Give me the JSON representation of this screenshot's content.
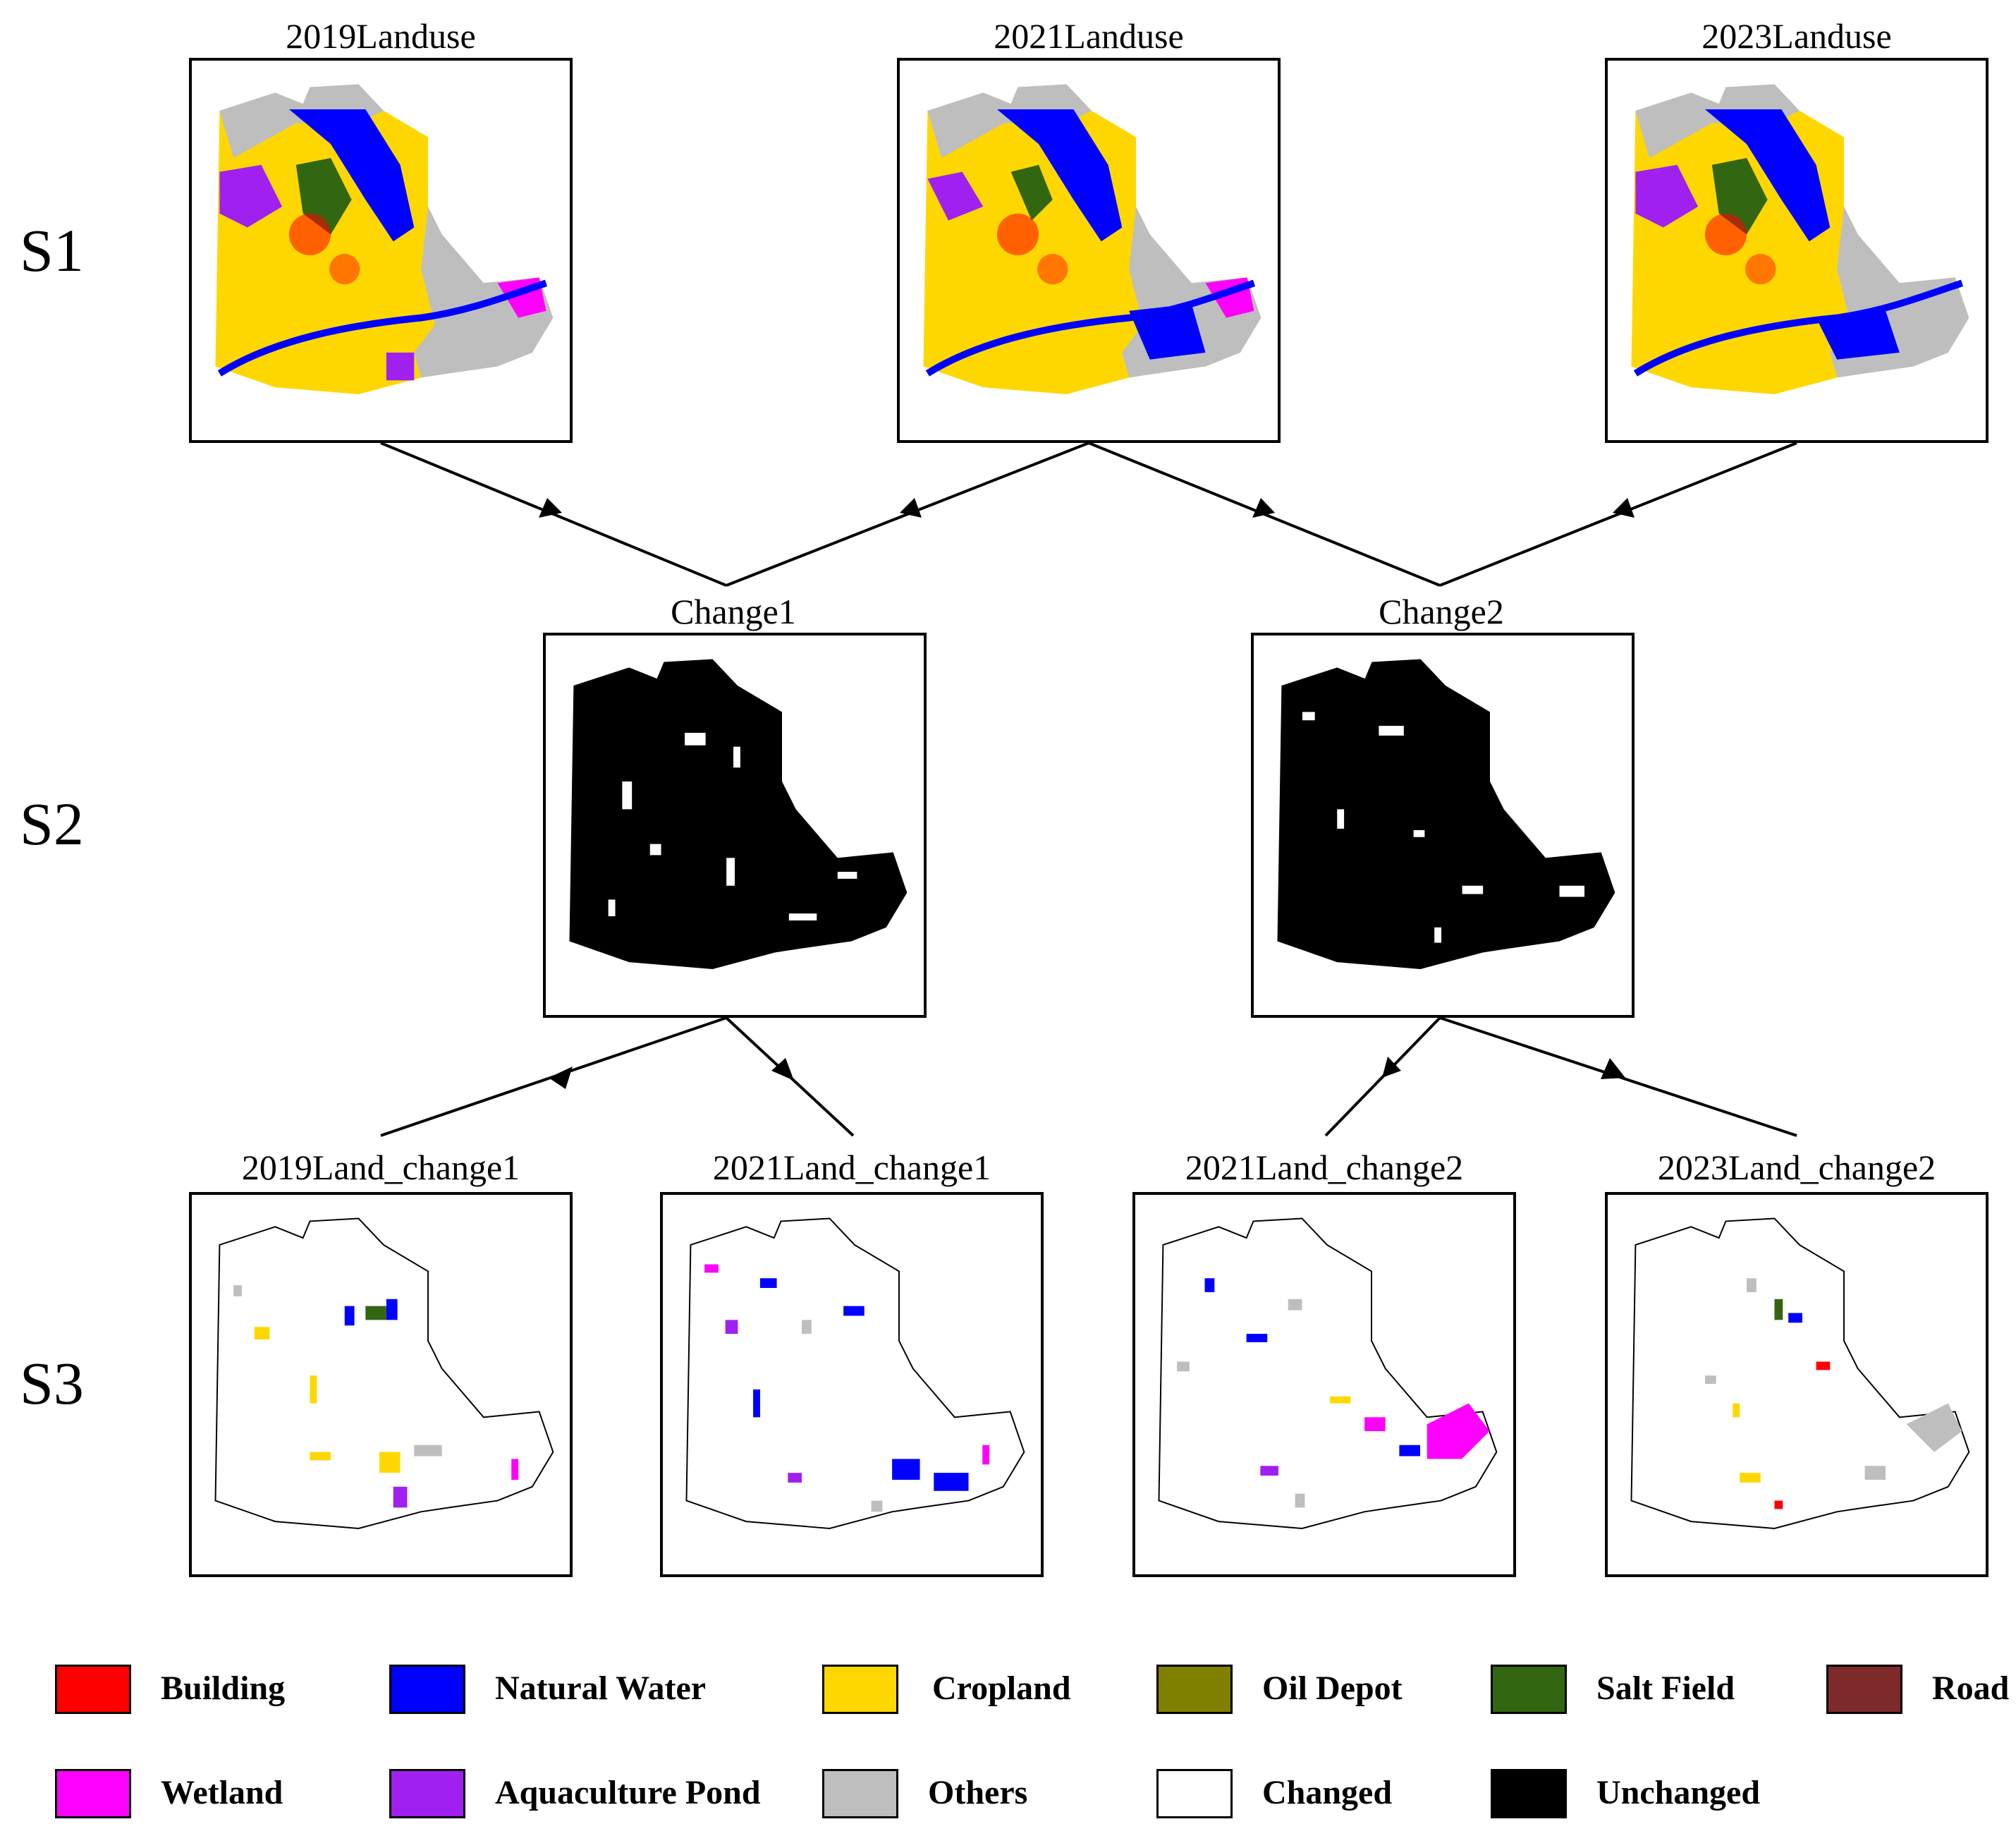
{
  "stages": {
    "s1": "S1",
    "s2": "S2",
    "s3": "S3"
  },
  "panels": {
    "landuse_2019": "2019Landuse",
    "landuse_2021": "2021Landuse",
    "landuse_2023": "2023Landuse",
    "change1": "Change1",
    "change2": "Change2",
    "land_change1_2019": "2019Land_change1",
    "land_change1_2021": "2021Land_change1",
    "land_change2_2021": "2021Land_change2",
    "land_change2_2023": "2023Land_change2"
  },
  "legend": [
    {
      "label": "Building",
      "color": "#ff0000"
    },
    {
      "label": "Natural Water",
      "color": "#0000ff"
    },
    {
      "label": "Cropland",
      "color": "#ffd700"
    },
    {
      "label": "Oil Depot",
      "color": "#808000"
    },
    {
      "label": "Salt Field",
      "color": "#336611"
    },
    {
      "label": "Road",
      "color": "#7f2a2a"
    },
    {
      "label": "Wetland",
      "color": "#ff00ff"
    },
    {
      "label": "Aquaculture Pond",
      "color": "#a020f0"
    },
    {
      "label": "Others",
      "color": "#bebebe"
    },
    {
      "label": "Changed",
      "color": "#ffffff"
    },
    {
      "label": "Unchanged",
      "color": "#000000"
    }
  ],
  "map_colors": {
    "cropland": "#ffd700",
    "water": "#0000ff",
    "wetland": "#ff00ff",
    "pond": "#a020f0",
    "others": "#bebebe",
    "salt": "#336611",
    "building": "#ff0000",
    "unchanged": "#000000"
  }
}
